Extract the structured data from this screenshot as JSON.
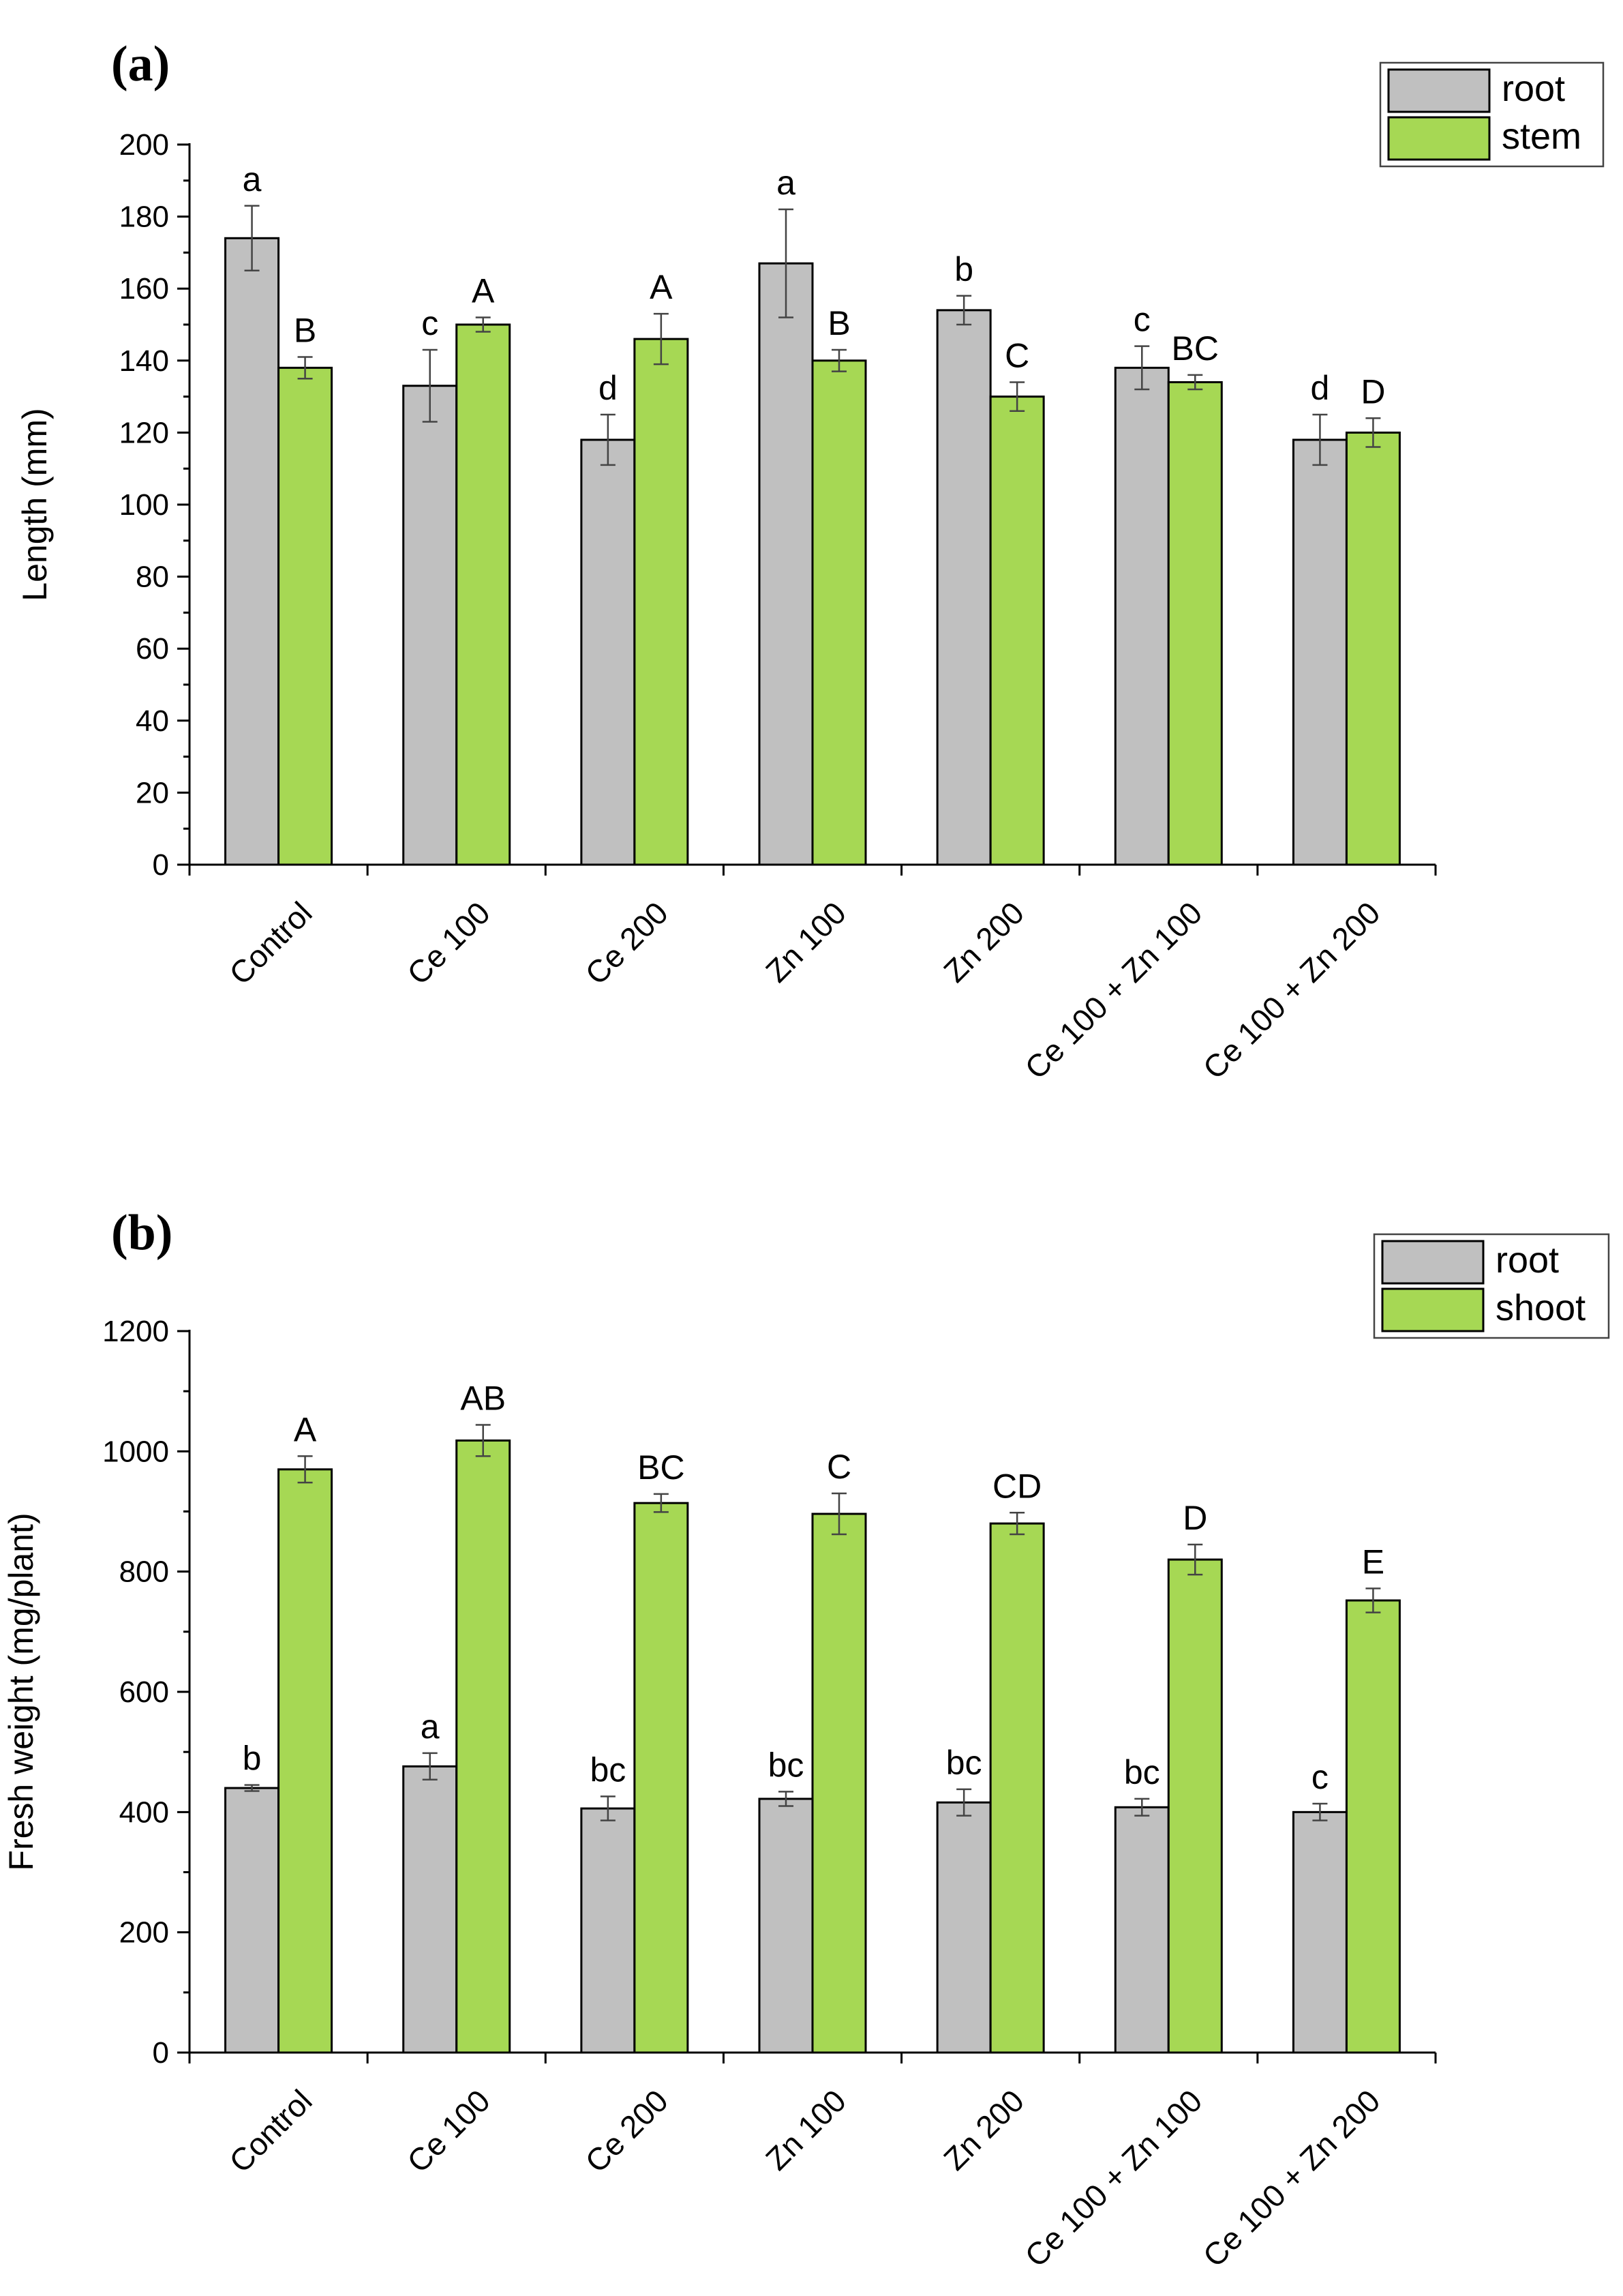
{
  "chart_data": [
    {
      "panel_label": "(a)",
      "type": "bar",
      "ylabel": "Length (mm)",
      "ylim": [
        0,
        200
      ],
      "yticks": [
        0,
        20,
        40,
        60,
        80,
        100,
        120,
        140,
        160,
        180,
        200
      ],
      "categories": [
        "Control",
        "Ce 100",
        "Ce 200",
        "Zn 100",
        "Zn 200",
        "Ce 100 + Zn 100",
        "Ce 100 + Zn 200"
      ],
      "legend_position": "top-right",
      "series": [
        {
          "name": "root",
          "color": "#c0c0c0",
          "values": [
            174,
            133,
            118,
            167,
            154,
            138,
            118
          ],
          "errors": [
            9,
            10,
            7,
            15,
            4,
            6,
            7
          ],
          "letters": [
            "a",
            "c",
            "d",
            "a",
            "b",
            "c",
            "d"
          ]
        },
        {
          "name": "stem",
          "color": "#a6d854",
          "values": [
            138,
            150,
            146,
            140,
            130,
            134,
            120
          ],
          "errors": [
            3,
            2,
            7,
            3,
            4,
            2,
            4
          ],
          "letters": [
            "B",
            "A",
            "A",
            "B",
            "C",
            "BC",
            "D"
          ]
        }
      ]
    },
    {
      "panel_label": "(b)",
      "type": "bar",
      "ylabel": "Fresh weight (mg/plant)",
      "ylim": [
        0,
        1200
      ],
      "yticks": [
        0,
        200,
        400,
        600,
        800,
        1000,
        1200
      ],
      "categories": [
        "Control",
        "Ce 100",
        "Ce 200",
        "Zn 100",
        "Zn 200",
        "Ce 100 + Zn 100",
        "Ce 100 + Zn 200"
      ],
      "legend_position": "top-right",
      "series": [
        {
          "name": "root",
          "color": "#c0c0c0",
          "values": [
            440,
            476,
            406,
            422,
            416,
            408,
            400
          ],
          "errors": [
            5,
            22,
            20,
            12,
            22,
            14,
            14
          ],
          "letters": [
            "b",
            "a",
            "bc",
            "bc",
            "bc",
            "bc",
            "c"
          ]
        },
        {
          "name": "shoot",
          "color": "#a6d854",
          "values": [
            970,
            1018,
            914,
            896,
            880,
            820,
            752
          ],
          "errors": [
            22,
            26,
            15,
            34,
            18,
            25,
            20
          ],
          "letters": [
            "A",
            "AB",
            "BC",
            "C",
            "CD",
            "D",
            "E"
          ]
        }
      ]
    }
  ]
}
